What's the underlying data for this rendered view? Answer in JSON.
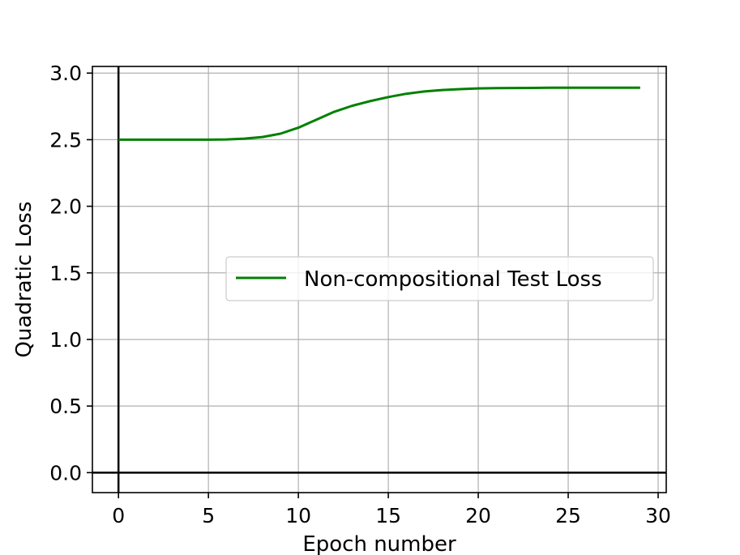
{
  "chart_data": {
    "type": "line",
    "title": "",
    "xlabel": "Epoch number",
    "ylabel": "Quadratic Loss",
    "xlim": [
      -1.45,
      30.45
    ],
    "ylim": [
      -0.15,
      3.05
    ],
    "xticks": [
      0,
      5,
      10,
      15,
      20,
      25,
      30
    ],
    "yticks": [
      0.0,
      0.5,
      1.0,
      1.5,
      2.0,
      2.5,
      3.0
    ],
    "xtick_labels": [
      "0",
      "5",
      "10",
      "15",
      "20",
      "25",
      "30"
    ],
    "ytick_labels": [
      "0.0",
      "0.5",
      "1.0",
      "1.5",
      "2.0",
      "2.5",
      "3.0"
    ],
    "grid": true,
    "reference_lines": {
      "x": 0,
      "y": 0
    },
    "legend_position": "center-right",
    "series": [
      {
        "name": "Non-compositional Test Loss",
        "color": "#008000",
        "x": [
          0,
          1,
          2,
          3,
          4,
          5,
          6,
          7,
          8,
          9,
          10,
          11,
          12,
          13,
          14,
          15,
          16,
          17,
          18,
          19,
          20,
          21,
          22,
          23,
          24,
          25,
          26,
          27,
          28,
          29
        ],
        "y": [
          2.5,
          2.5,
          2.5,
          2.5,
          2.5,
          2.5,
          2.502,
          2.508,
          2.52,
          2.545,
          2.59,
          2.65,
          2.71,
          2.755,
          2.79,
          2.82,
          2.845,
          2.862,
          2.873,
          2.88,
          2.885,
          2.887,
          2.888,
          2.889,
          2.89,
          2.89,
          2.89,
          2.89,
          2.89,
          2.89
        ]
      }
    ]
  }
}
